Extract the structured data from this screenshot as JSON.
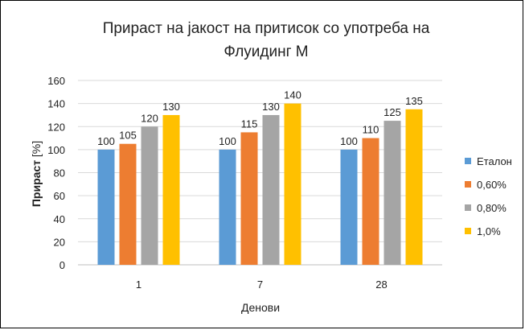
{
  "chart_data": {
    "type": "bar",
    "title": [
      "Прираст на јакост на притисок со употреба на",
      "Флуидинг М"
    ],
    "xlabel": "Денови",
    "ylabel": {
      "bold": "Прираст",
      "normal": " [%]"
    },
    "categories": [
      "1",
      "7",
      "28"
    ],
    "ylim": [
      0,
      160
    ],
    "yticks": [
      0,
      20,
      40,
      60,
      80,
      100,
      120,
      140,
      160
    ],
    "grid": true,
    "legend_position": "right",
    "series": [
      {
        "name": "Еталон",
        "color": "#5b9bd5",
        "values": [
          100,
          100,
          100
        ]
      },
      {
        "name": "0,60%",
        "color": "#ed7d31",
        "values": [
          105,
          115,
          110
        ]
      },
      {
        "name": "0,80%",
        "color": "#a5a5a5",
        "values": [
          120,
          130,
          125
        ]
      },
      {
        "name": "1,0%",
        "color": "#ffc000",
        "values": [
          130,
          140,
          135
        ]
      }
    ]
  }
}
